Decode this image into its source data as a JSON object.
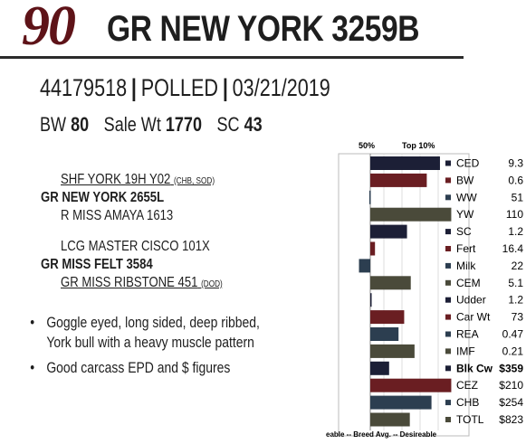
{
  "header": {
    "lot_number": "90",
    "bull_name": "GR NEW YORK 3259B"
  },
  "identity": {
    "registration": "44179518",
    "polled": "POLLED",
    "birth_date": "03/21/2019"
  },
  "stats": {
    "bw_label": "BW",
    "bw_value": "80",
    "sale_wt_label": "Sale Wt",
    "sale_wt_value": "1770",
    "sc_label": "SC",
    "sc_value": "43"
  },
  "pedigree": {
    "sire_sire": "SHF YORK 19H Y02",
    "sire_sire_tag": "(CHB, SOD)",
    "sire": "GR NEW YORK 2655L",
    "sire_dam": "R MISS AMAYA 1613",
    "dam_sire": "LCG MASTER CISCO 101X",
    "dam": "GR MISS FELT 3584",
    "dam_dam": "GR MISS RIBSTONE 451",
    "dam_dam_tag": "(DOD)"
  },
  "notes": [
    "Goggle eyed, long sided, deep ribbed, York bull with a heavy muscle pattern",
    "Good carcass EPD and $ figures"
  ],
  "colors": {
    "navy": "#1c1f36",
    "maroon": "#6a1e22",
    "slate": "#2c3e50",
    "olive": "#4a4a3a",
    "lot_red": "#5e1318"
  },
  "chart_data": {
    "type": "bar",
    "orientation": "horizontal",
    "top_labels": [
      "50%",
      "Top 10%"
    ],
    "bottom_label": "eable -- Breed Avg. --  Desireable",
    "scale_note": "percentile rank vs breed average",
    "rows": [
      {
        "trait": "CED",
        "value": "9.3",
        "rank": 0.74,
        "color": "#1c1f36",
        "bold": false
      },
      {
        "trait": "BW",
        "value": "0.6",
        "rank": 0.6,
        "color": "#6a1e22",
        "bold": false
      },
      {
        "trait": "WW",
        "value": "51",
        "rank": -0.01,
        "color": "#2c3e50",
        "bold": false
      },
      {
        "trait": "YW",
        "value": "110",
        "rank": 0.86,
        "color": "#4a4a3a",
        "bold": false
      },
      {
        "trait": "SC",
        "value": "1.2",
        "rank": 0.39,
        "color": "#1c1f36",
        "bold": false
      },
      {
        "trait": "Fert",
        "value": "16.4",
        "rank": 0.05,
        "color": "#6a1e22",
        "bold": false
      },
      {
        "trait": "Milk",
        "value": "22",
        "rank": -0.12,
        "color": "#2c3e50",
        "bold": false
      },
      {
        "trait": "CEM",
        "value": "5.1",
        "rank": 0.43,
        "color": "#4a4a3a",
        "bold": false
      },
      {
        "trait": "Udder",
        "value": "1.2",
        "rank": 0.0,
        "color": "#1c1f36",
        "bold": false
      },
      {
        "trait": "Car Wt",
        "value": "73",
        "rank": 0.36,
        "color": "#6a1e22",
        "bold": false
      },
      {
        "trait": "REA",
        "value": "0.47",
        "rank": 0.3,
        "color": "#2c3e50",
        "bold": false
      },
      {
        "trait": "IMF",
        "value": "0.21",
        "rank": 0.47,
        "color": "#4a4a3a",
        "bold": false
      },
      {
        "trait": "Blk Cw",
        "value": "$359",
        "rank": 0.2,
        "color": "#1c1f36",
        "bold": true
      },
      {
        "trait": "CEZ",
        "value": "$210",
        "rank": 0.86,
        "color": "#6a1e22",
        "bold": false
      },
      {
        "trait": "CHB",
        "value": "$254",
        "rank": 0.65,
        "color": "#2c3e50",
        "bold": false
      },
      {
        "trait": "TOTL",
        "value": "$823",
        "rank": 0.42,
        "color": "#4a4a3a",
        "bold": false
      }
    ]
  }
}
